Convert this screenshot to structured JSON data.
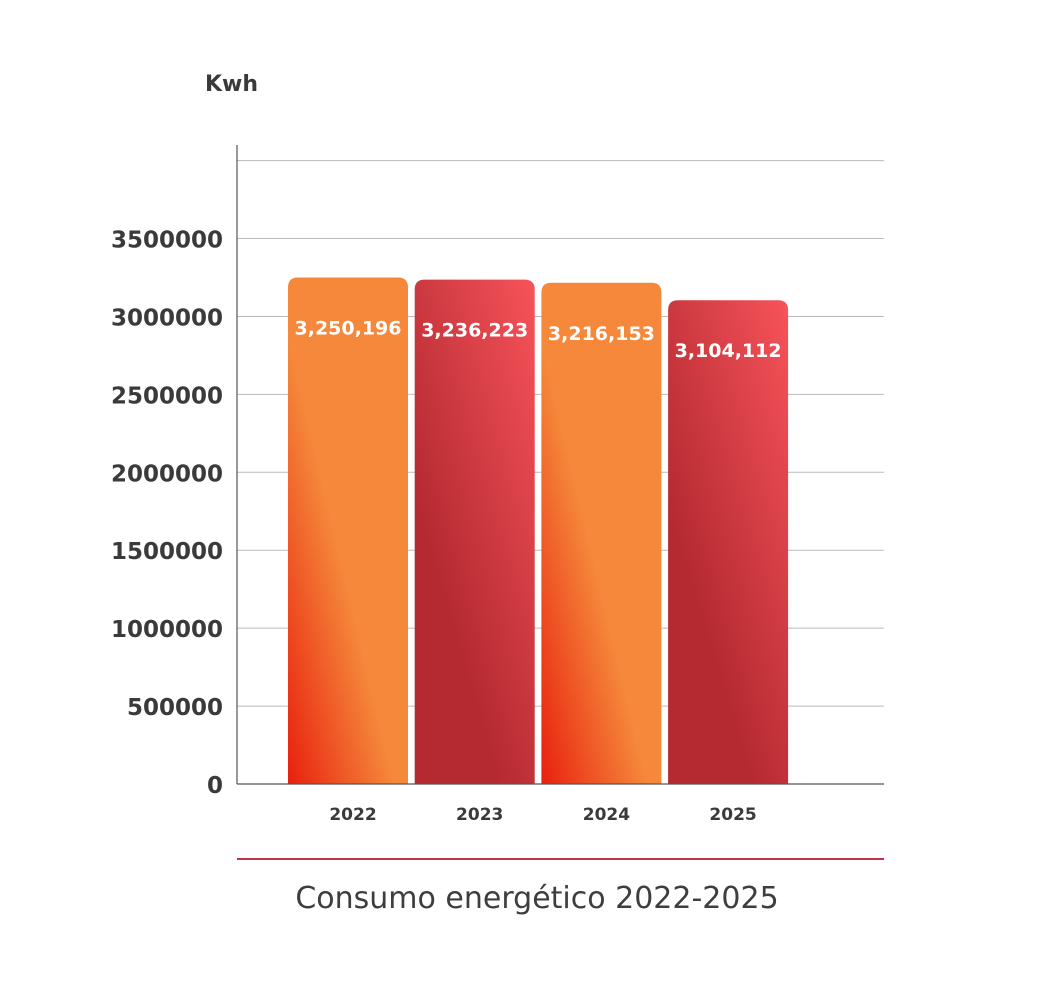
{
  "chart_data": {
    "type": "bar",
    "title": "Consumo energético 2022-2025",
    "ylabel": "Kwh",
    "xlabel": "",
    "categories": [
      "2022",
      "2023",
      "2024",
      "2025"
    ],
    "values": [
      3250196,
      3236223,
      3216153,
      3104112
    ],
    "value_labels": [
      "3,250,196",
      "3,236,223",
      "3,216,153",
      "3,104,112"
    ],
    "y_ticks": [
      0,
      500000,
      1000000,
      1500000,
      2000000,
      2500000,
      3000000,
      3500000
    ],
    "y_tick_labels": [
      "0",
      "500000",
      "1000000",
      "1500000",
      "2000000",
      "2500000",
      "3000000",
      "3500000"
    ],
    "ylim": [
      0,
      4100000
    ],
    "grid": true,
    "legend": "none",
    "colors": {
      "orange_top": "#f5883a",
      "orange_bottom": "#e8200f",
      "red_top": "#f7535a",
      "red_bottom": "#b52a31",
      "axis": "#555555",
      "grid": "#bbbbbb",
      "title_rule": "#c4304a"
    },
    "bar_styles": [
      "orange",
      "red",
      "orange",
      "red"
    ]
  }
}
